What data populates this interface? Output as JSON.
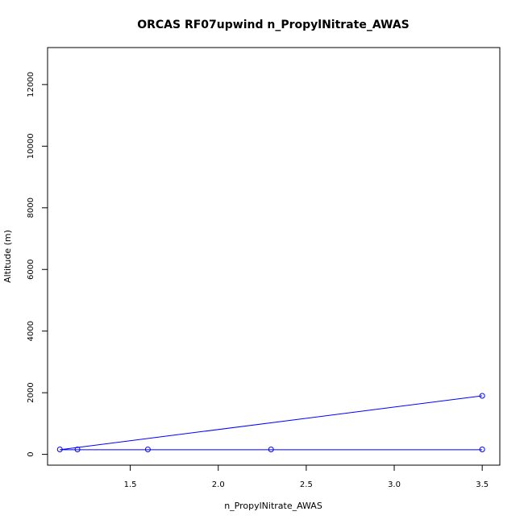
{
  "chart_data": {
    "type": "line",
    "title": "ORCAS RF07upwind n_PropylNitrate_AWAS",
    "xlabel": "n_PropylNitrate_AWAS",
    "ylabel": "Altitude (m)",
    "xlim": [
      1.03,
      3.6
    ],
    "ylim": [
      -350,
      13200
    ],
    "x_ticks": [
      1.5,
      2.0,
      2.5,
      3.0,
      3.5
    ],
    "x_tick_labels": [
      "1.5",
      "2.0",
      "2.5",
      "3.0",
      "3.5"
    ],
    "y_ticks": [
      0,
      2000,
      4000,
      6000,
      8000,
      10000,
      12000
    ],
    "y_tick_labels": [
      "0",
      "2000",
      "4000",
      "6000",
      "8000",
      "10000",
      "12000"
    ],
    "grid": false,
    "series": [
      {
        "color": "#0000ff",
        "line_points": [
          {
            "x": 3.5,
            "y": 1900
          },
          {
            "x": 1.1,
            "y": 150
          },
          {
            "x": 3.5,
            "y": 150
          }
        ],
        "markers": [
          {
            "x": 3.5,
            "y": 1900
          },
          {
            "x": 1.1,
            "y": 160
          },
          {
            "x": 1.2,
            "y": 160
          },
          {
            "x": 1.6,
            "y": 160
          },
          {
            "x": 2.3,
            "y": 160
          },
          {
            "x": 3.5,
            "y": 160
          }
        ]
      }
    ]
  }
}
